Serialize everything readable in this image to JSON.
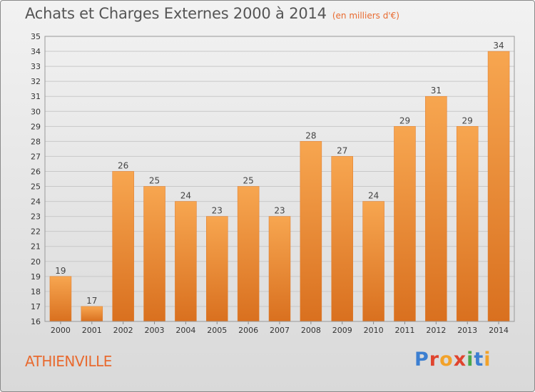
{
  "chart_data": {
    "type": "bar",
    "title": "Achats et Charges Externes 2000 à 2014",
    "unit": "(en milliers d'€)",
    "categories": [
      "2000",
      "2001",
      "2002",
      "2003",
      "2004",
      "2005",
      "2006",
      "2007",
      "2008",
      "2009",
      "2010",
      "2011",
      "2012",
      "2013",
      "2014"
    ],
    "values": [
      19,
      17,
      26,
      25,
      24,
      23,
      25,
      23,
      28,
      27,
      24,
      29,
      31,
      29,
      34
    ],
    "ylim": [
      16,
      35
    ],
    "yticks": [
      16,
      17,
      18,
      19,
      20,
      21,
      22,
      23,
      24,
      25,
      26,
      27,
      28,
      29,
      30,
      31,
      32,
      33,
      34,
      35
    ],
    "grid": true,
    "bar_color": "#f0893a",
    "bar_color_light": "#f7a650",
    "bar_color_dark": "#d9701f"
  },
  "commune": "ATHIENVILLE",
  "logo": {
    "letters": [
      "P",
      "r",
      "o",
      "x",
      "i",
      "t",
      "i"
    ]
  }
}
